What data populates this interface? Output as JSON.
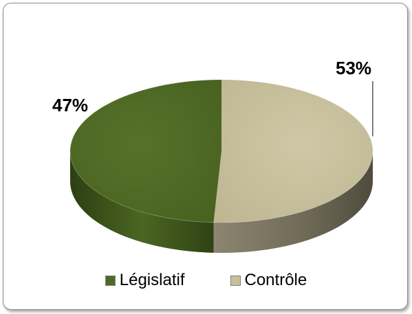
{
  "chart_data": {
    "type": "pie",
    "style": "3d",
    "categories": [
      "Législatif",
      "Contrôle"
    ],
    "values": [
      47,
      53
    ],
    "labels": [
      "47%",
      "53%"
    ],
    "colors": [
      "#4e6a24",
      "#c6bf99"
    ],
    "side_colors": [
      "#3a5119",
      "#7a7460"
    ],
    "title": "",
    "legend_position": "bottom"
  },
  "legend": {
    "items": [
      {
        "label": "Législatif",
        "color": "#4e6a24"
      },
      {
        "label": "Contrôle",
        "color": "#c6bf99"
      }
    ]
  }
}
